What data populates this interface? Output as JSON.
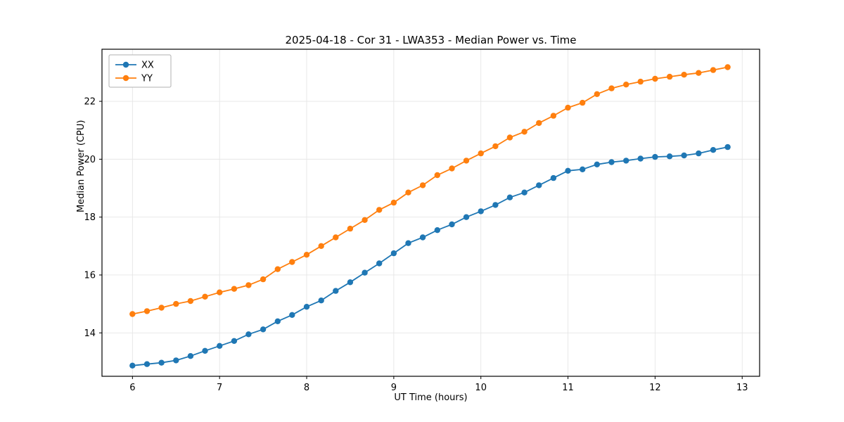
{
  "chart_data": {
    "type": "line",
    "title": "2025-04-18 - Cor 31 - LWA353 - Median Power vs. Time",
    "xlabel": "UT Time (hours)",
    "ylabel": "Median Power (CPU)",
    "xlim": [
      5.65,
      13.2
    ],
    "ylim": [
      12.5,
      23.8
    ],
    "xticks": [
      6,
      7,
      8,
      9,
      10,
      11,
      12,
      13
    ],
    "yticks": [
      14,
      16,
      18,
      20,
      22
    ],
    "grid": true,
    "legend_position": "upper-left",
    "x": [
      6.0,
      6.167,
      6.333,
      6.5,
      6.667,
      6.833,
      7.0,
      7.167,
      7.333,
      7.5,
      7.667,
      7.833,
      8.0,
      8.167,
      8.333,
      8.5,
      8.667,
      8.833,
      9.0,
      9.167,
      9.333,
      9.5,
      9.667,
      9.833,
      10.0,
      10.167,
      10.333,
      10.5,
      10.667,
      10.833,
      11.0,
      11.167,
      11.333,
      11.5,
      11.667,
      11.833,
      12.0,
      12.167,
      12.333,
      12.5,
      12.667,
      12.833
    ],
    "series": [
      {
        "name": "XX",
        "color": "#1f77b4",
        "values": [
          12.87,
          12.92,
          12.97,
          13.05,
          13.2,
          13.38,
          13.55,
          13.72,
          13.95,
          14.12,
          14.4,
          14.62,
          14.9,
          15.12,
          15.45,
          15.75,
          16.08,
          16.4,
          16.75,
          17.1,
          17.3,
          17.55,
          17.75,
          18.0,
          18.2,
          18.42,
          18.68,
          18.85,
          19.1,
          19.35,
          19.6,
          19.65,
          19.82,
          19.9,
          19.95,
          20.02,
          20.08,
          20.1,
          20.13,
          20.2,
          20.32,
          20.42
        ]
      },
      {
        "name": "YY",
        "color": "#ff7f0e",
        "values": [
          14.65,
          14.75,
          14.87,
          15.0,
          15.1,
          15.25,
          15.4,
          15.52,
          15.65,
          15.85,
          16.2,
          16.45,
          16.7,
          17.0,
          17.3,
          17.6,
          17.9,
          18.25,
          18.5,
          18.85,
          19.1,
          19.45,
          19.68,
          19.95,
          20.2,
          20.45,
          20.75,
          20.95,
          21.25,
          21.5,
          21.78,
          21.95,
          22.25,
          22.45,
          22.58,
          22.68,
          22.78,
          22.85,
          22.92,
          22.98,
          23.08,
          23.18
        ]
      }
    ]
  }
}
